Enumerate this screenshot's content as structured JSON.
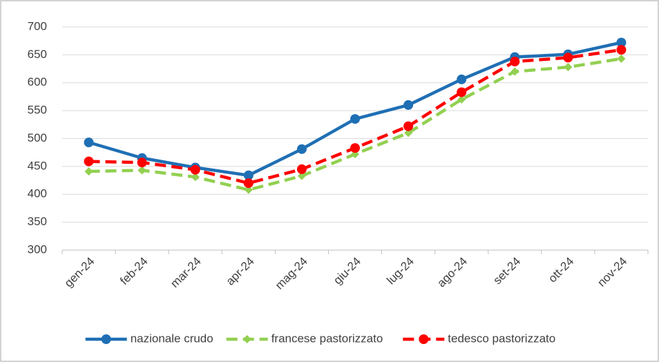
{
  "chart_data": {
    "type": "line",
    "categories": [
      "gen-24",
      "feb-24",
      "mar-24",
      "apr-24",
      "mag-24",
      "giu-24",
      "lug-24",
      "ago-24",
      "set-24",
      "ott-24",
      "nov-24"
    ],
    "series": [
      {
        "name": "nazionale crudo",
        "color": "#1f6fb4",
        "dash": false,
        "marker": "circle",
        "values": [
          493,
          465,
          448,
          434,
          481,
          535,
          560,
          606,
          646,
          651,
          672
        ]
      },
      {
        "name": "francese pastorizzato",
        "color": "#92d050",
        "dash": true,
        "marker": "diamond",
        "values": [
          441,
          443,
          431,
          408,
          433,
          472,
          510,
          570,
          620,
          628,
          643
        ]
      },
      {
        "name": "tedesco pastorizzato",
        "color": "#ff0000",
        "dash": true,
        "marker": "circle",
        "values": [
          459,
          457,
          444,
          420,
          445,
          483,
          522,
          583,
          638,
          645,
          659
        ]
      }
    ],
    "ylim": [
      300,
      700
    ],
    "yticks": [
      300,
      350,
      400,
      450,
      500,
      550,
      600,
      650,
      700
    ],
    "grid": true,
    "legend": "bottom"
  }
}
